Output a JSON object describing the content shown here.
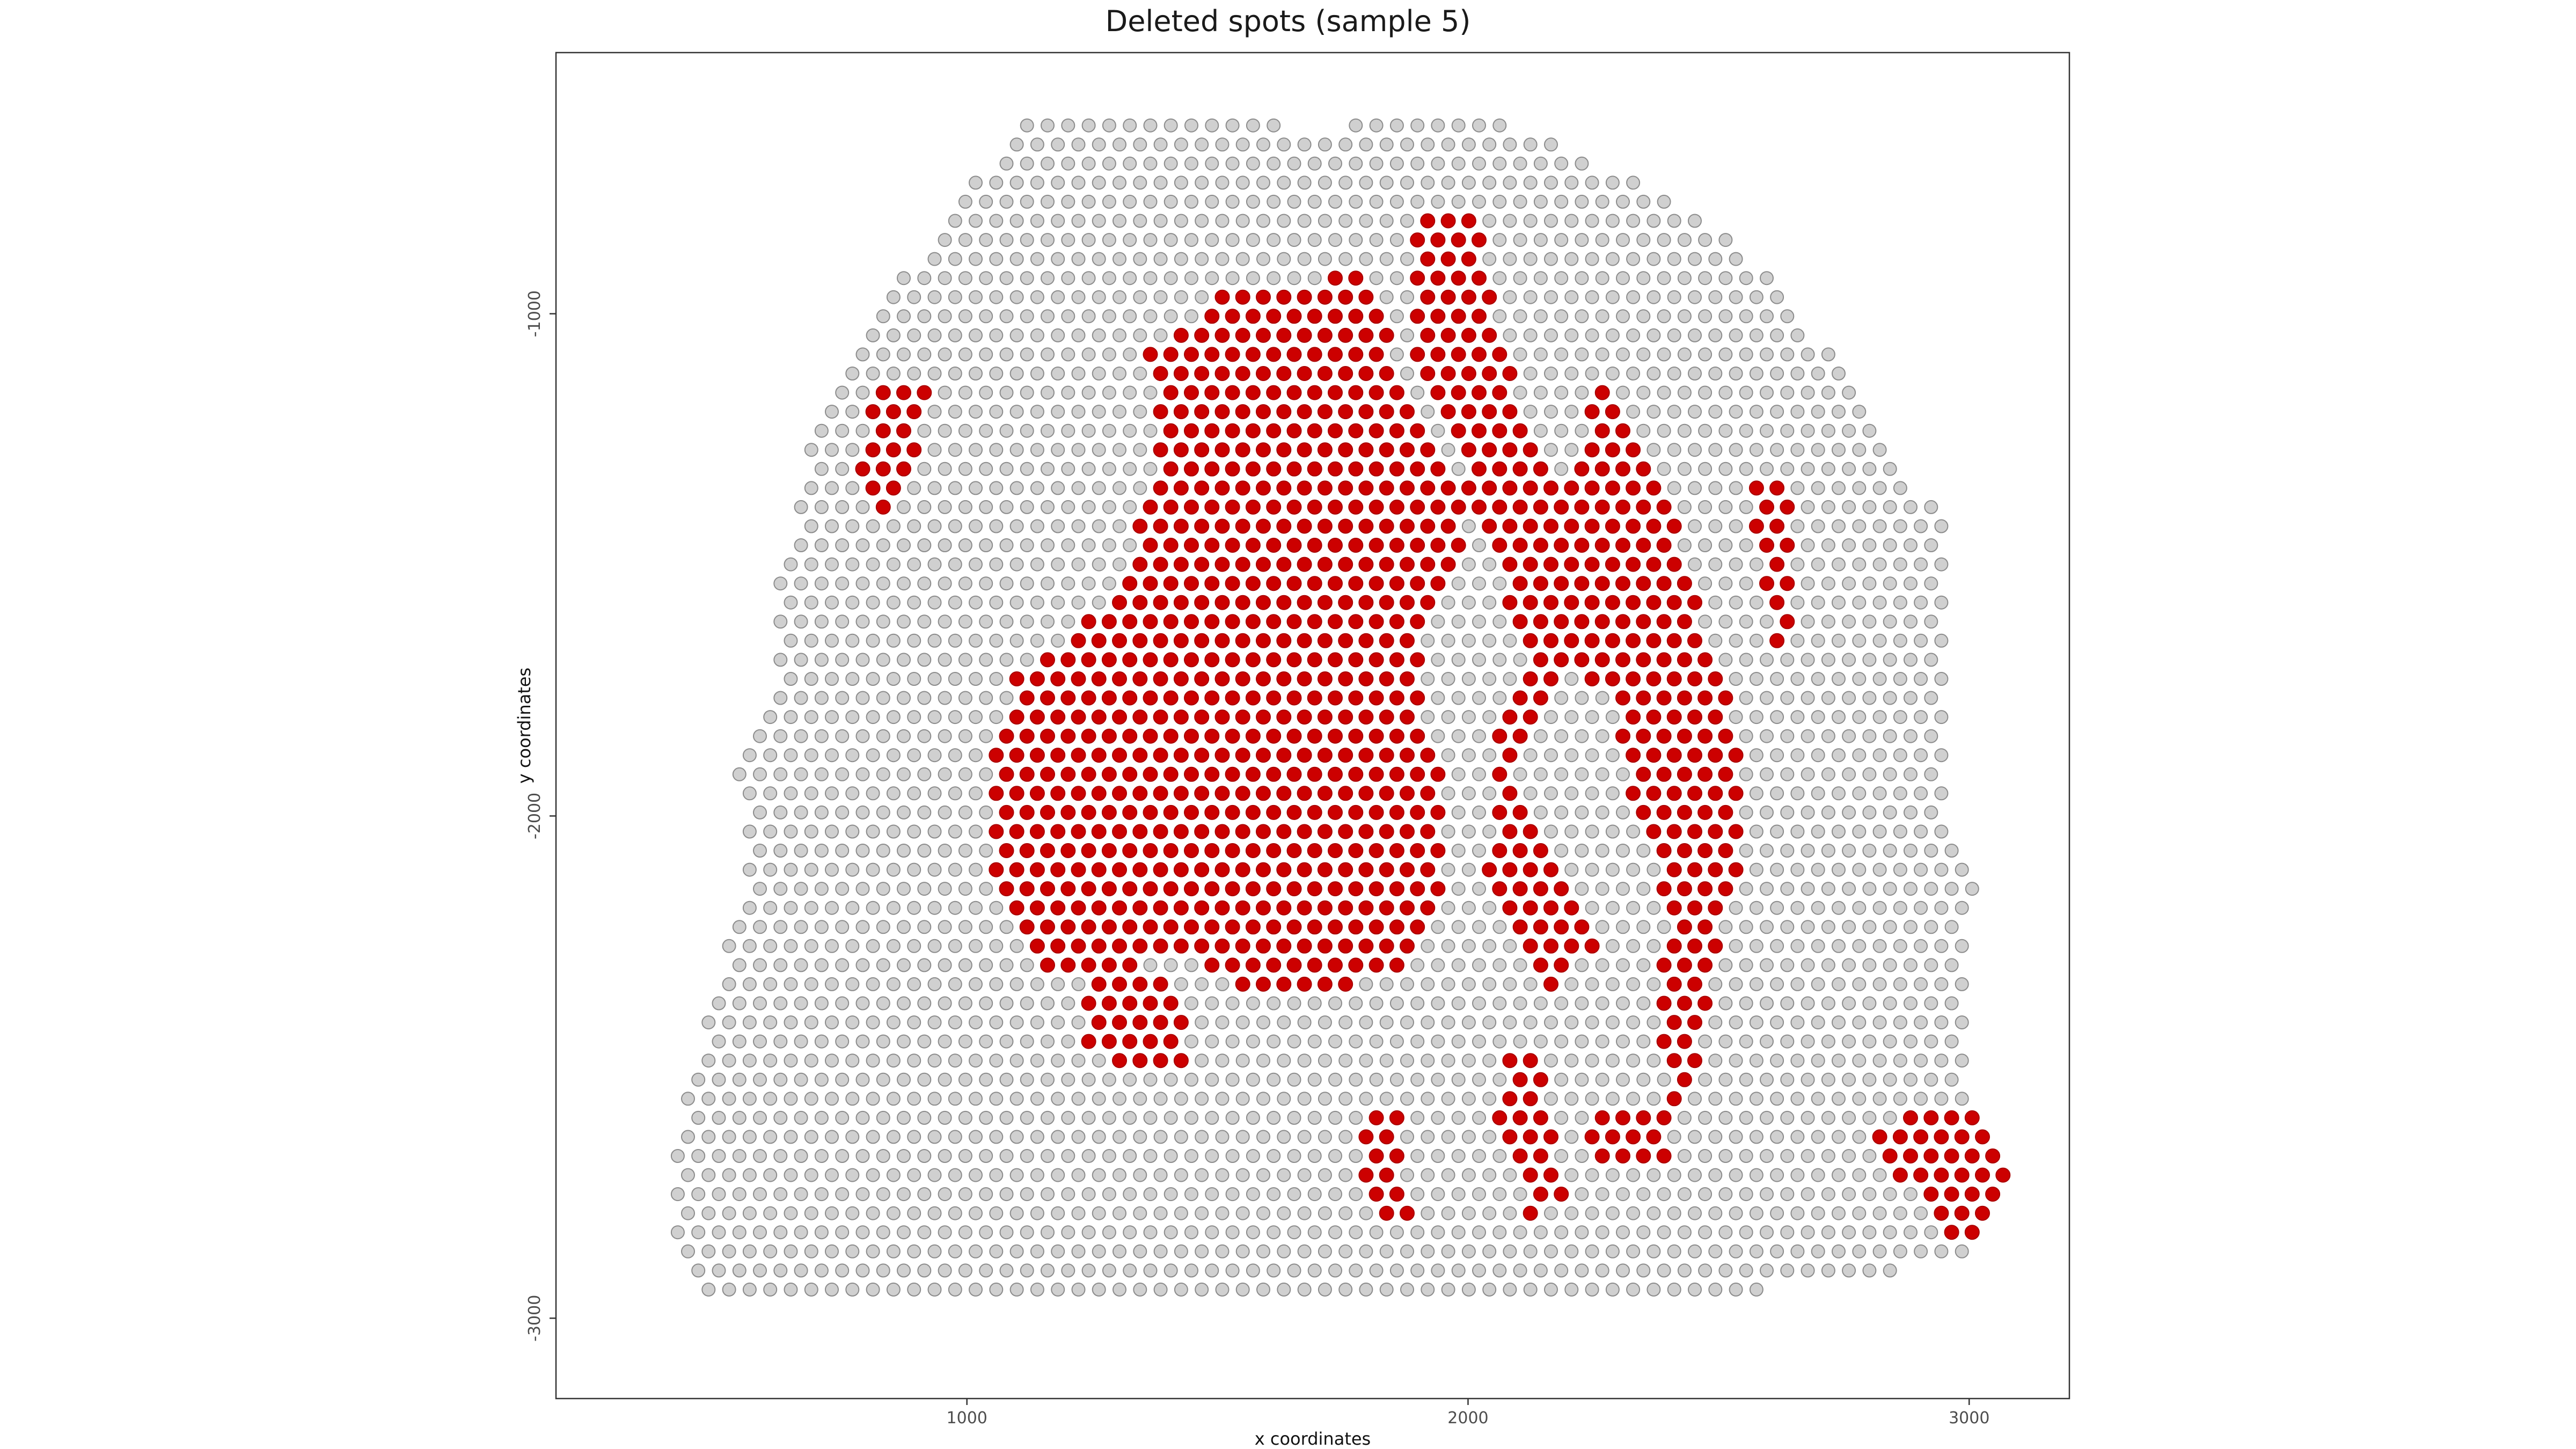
{
  "chart_data": {
    "type": "scatter",
    "title": "Deleted spots (sample 5)",
    "xlabel": "x coordinates",
    "ylabel": "y coordinates",
    "xlim": [
      180,
      3200
    ],
    "ylim": [
      -3160,
      -480
    ],
    "x_ticks": [
      1000,
      2000,
      3000
    ],
    "y_ticks": [
      -1000,
      -2000,
      -3000
    ],
    "x_tick_labels": [
      "1000",
      "2000",
      "3000"
    ],
    "y_tick_labels": [
      "-1000",
      "-2000",
      "-3000"
    ],
    "grid": false,
    "legend": "none",
    "colors": {
      "kept": "#d0d0d0",
      "kept_edge": "#8c8c8c",
      "deleted": "#cc0000"
    },
    "spot_grid": {
      "x_spacing": 41,
      "y_spacing": 38,
      "row_count": 62,
      "first_row_y": -625
    },
    "tissue_outline": [
      [
        1100,
        -625
      ],
      [
        1350,
        -585
      ],
      [
        1560,
        -605
      ],
      [
        1680,
        -640
      ],
      [
        1830,
        -610
      ],
      [
        1990,
        -595
      ],
      [
        2180,
        -665
      ],
      [
        2400,
        -765
      ],
      [
        2560,
        -880
      ],
      [
        2700,
        -1050
      ],
      [
        2840,
        -1260
      ],
      [
        2950,
        -1420
      ],
      [
        2960,
        -1580
      ],
      [
        2950,
        -1760
      ],
      [
        2960,
        -1980
      ],
      [
        3010,
        -2130
      ],
      [
        3000,
        -2320
      ],
      [
        2990,
        -2550
      ],
      [
        3040,
        -2620
      ],
      [
        3090,
        -2730
      ],
      [
        3020,
        -2870
      ],
      [
        2740,
        -2930
      ],
      [
        2400,
        -2960
      ],
      [
        2000,
        -2990
      ],
      [
        1500,
        -3000
      ],
      [
        1000,
        -3010
      ],
      [
        530,
        -3030
      ],
      [
        420,
        -2850
      ],
      [
        420,
        -2650
      ],
      [
        470,
        -2450
      ],
      [
        520,
        -2250
      ],
      [
        560,
        -2100
      ],
      [
        540,
        -1880
      ],
      [
        620,
        -1700
      ],
      [
        620,
        -1520
      ],
      [
        650,
        -1420
      ],
      [
        690,
        -1260
      ],
      [
        800,
        -1020
      ],
      [
        930,
        -850
      ],
      [
        1030,
        -720
      ]
    ],
    "deleted_regions": [
      [
        [
          1510,
          -960
        ],
        [
          1800,
          -920
        ],
        [
          1850,
          -1000
        ],
        [
          1860,
          -1160
        ],
        [
          1950,
          -1260
        ],
        [
          2000,
          -1460
        ],
        [
          1910,
          -1640
        ],
        [
          1900,
          -1790
        ],
        [
          1950,
          -1920
        ],
        [
          1950,
          -2150
        ],
        [
          1900,
          -2280
        ],
        [
          1700,
          -2370
        ],
        [
          1550,
          -2370
        ],
        [
          1450,
          -2260
        ],
        [
          1300,
          -2310
        ],
        [
          1150,
          -2330
        ],
        [
          1050,
          -2100
        ],
        [
          1040,
          -1880
        ],
        [
          1100,
          -1720
        ],
        [
          1250,
          -1600
        ],
        [
          1300,
          -1540
        ],
        [
          1360,
          -1380
        ],
        [
          1380,
          -1220
        ],
        [
          1360,
          -1060
        ],
        [
          1440,
          -1020
        ]
      ],
      [
        [
          1900,
          -780
        ],
        [
          2030,
          -800
        ],
        [
          2060,
          -1020
        ],
        [
          2100,
          -1180
        ],
        [
          2200,
          -1360
        ],
        [
          2250,
          -1180
        ],
        [
          2280,
          -1100
        ],
        [
          2300,
          -1150
        ],
        [
          2330,
          -1270
        ],
        [
          2390,
          -1350
        ],
        [
          2430,
          -1460
        ],
        [
          2470,
          -1620
        ],
        [
          2520,
          -1750
        ],
        [
          2550,
          -1900
        ],
        [
          2540,
          -2120
        ],
        [
          2500,
          -2250
        ],
        [
          2470,
          -2400
        ],
        [
          2460,
          -2550
        ],
        [
          2400,
          -2570
        ],
        [
          2380,
          -2390
        ],
        [
          2400,
          -2200
        ],
        [
          2340,
          -2000
        ],
        [
          2290,
          -1790
        ],
        [
          2200,
          -1670
        ],
        [
          2150,
          -1760
        ],
        [
          2100,
          -1900
        ],
        [
          2130,
          -2030
        ],
        [
          2200,
          -2130
        ],
        [
          2250,
          -2260
        ],
        [
          2160,
          -2340
        ],
        [
          2080,
          -2240
        ],
        [
          2030,
          -2120
        ],
        [
          2060,
          -1980
        ],
        [
          2050,
          -1800
        ],
        [
          2110,
          -1690
        ],
        [
          2070,
          -1540
        ],
        [
          2010,
          -1430
        ],
        [
          1980,
          -1260
        ],
        [
          1900,
          -1120
        ],
        [
          1880,
          -960
        ]
      ],
      [
        [
          820,
          -1120
        ],
        [
          920,
          -1150
        ],
        [
          900,
          -1320
        ],
        [
          830,
          -1400
        ],
        [
          780,
          -1300
        ]
      ],
      [
        [
          2560,
          -1310
        ],
        [
          2640,
          -1330
        ],
        [
          2650,
          -1650
        ],
        [
          2610,
          -1720
        ],
        [
          2590,
          -1550
        ]
      ],
      [
        [
          2800,
          -2620
        ],
        [
          3050,
          -2560
        ],
        [
          3080,
          -2800
        ],
        [
          2960,
          -2870
        ],
        [
          2880,
          -2730
        ],
        [
          2780,
          -2660
        ]
      ],
      [
        [
          1780,
          -2580
        ],
        [
          1870,
          -2590
        ],
        [
          1880,
          -2820
        ],
        [
          1800,
          -2790
        ],
        [
          1780,
          -2700
        ]
      ],
      [
        [
          2080,
          -2440
        ],
        [
          2150,
          -2500
        ],
        [
          2190,
          -2770
        ],
        [
          2120,
          -2800
        ],
        [
          2060,
          -2620
        ]
      ],
      [
        [
          2240,
          -2580
        ],
        [
          2400,
          -2580
        ],
        [
          2400,
          -2680
        ],
        [
          2250,
          -2700
        ]
      ],
      [
        [
          1230,
          -2330
        ],
        [
          1420,
          -2330
        ],
        [
          1450,
          -2500
        ],
        [
          1310,
          -2510
        ],
        [
          1220,
          -2440
        ]
      ]
    ]
  }
}
